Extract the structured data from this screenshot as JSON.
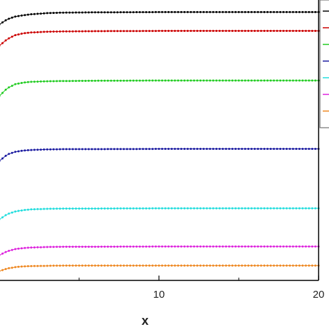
{
  "chart_data": {
    "type": "line",
    "title": "",
    "xlabel": "x",
    "ylabel": "",
    "xlim": [
      0,
      20
    ],
    "ylim": [
      0,
      1
    ],
    "xticks": [
      10,
      20
    ],
    "xtick_labels": [
      "10",
      "20"
    ],
    "grid": false,
    "legend": "top-right",
    "series": [
      {
        "color": "#000000",
        "x": [
          0,
          0.5,
          1,
          1.5,
          2,
          3,
          4,
          6,
          10,
          15,
          20
        ],
        "y": [
          0.965,
          0.985,
          0.995,
          1.0,
          1.004,
          1.008,
          1.01,
          1.011,
          1.012,
          1.012,
          1.012
        ]
      },
      {
        "color": "#cc0000",
        "x": [
          0,
          0.5,
          1,
          1.5,
          2,
          3,
          4,
          6,
          10,
          15,
          20
        ],
        "y": [
          0.885,
          0.91,
          0.925,
          0.932,
          0.935,
          0.938,
          0.939,
          0.94,
          0.941,
          0.941,
          0.941
        ]
      },
      {
        "color": "#22cc22",
        "x": [
          0,
          0.5,
          1,
          1.5,
          2,
          3,
          4,
          6,
          10,
          15,
          20
        ],
        "y": [
          0.695,
          0.725,
          0.74,
          0.746,
          0.749,
          0.751,
          0.752,
          0.753,
          0.754,
          0.754,
          0.754
        ]
      },
      {
        "color": "#1a1aa0",
        "x": [
          0,
          0.5,
          1,
          1.5,
          2,
          3,
          4,
          6,
          10,
          15,
          20
        ],
        "y": [
          0.45,
          0.475,
          0.485,
          0.49,
          0.492,
          0.494,
          0.495,
          0.495,
          0.496,
          0.496,
          0.496
        ]
      },
      {
        "color": "#22dddd",
        "x": [
          0,
          0.5,
          1,
          1.5,
          2,
          3,
          4,
          6,
          10,
          15,
          20
        ],
        "y": [
          0.23,
          0.25,
          0.26,
          0.265,
          0.268,
          0.27,
          0.271,
          0.271,
          0.272,
          0.272,
          0.272
        ]
      },
      {
        "color": "#dd22dd",
        "x": [
          0,
          0.5,
          1,
          1.5,
          2,
          3,
          4,
          6,
          10,
          15,
          20
        ],
        "y": [
          0.095,
          0.11,
          0.118,
          0.122,
          0.124,
          0.126,
          0.127,
          0.127,
          0.128,
          0.128,
          0.128
        ]
      },
      {
        "color": "#ee8822",
        "x": [
          0,
          0.5,
          1,
          1.5,
          2,
          3,
          4,
          6,
          10,
          15,
          20
        ],
        "y": [
          0.035,
          0.045,
          0.05,
          0.053,
          0.054,
          0.055,
          0.056,
          0.056,
          0.056,
          0.056,
          0.056
        ]
      }
    ]
  }
}
